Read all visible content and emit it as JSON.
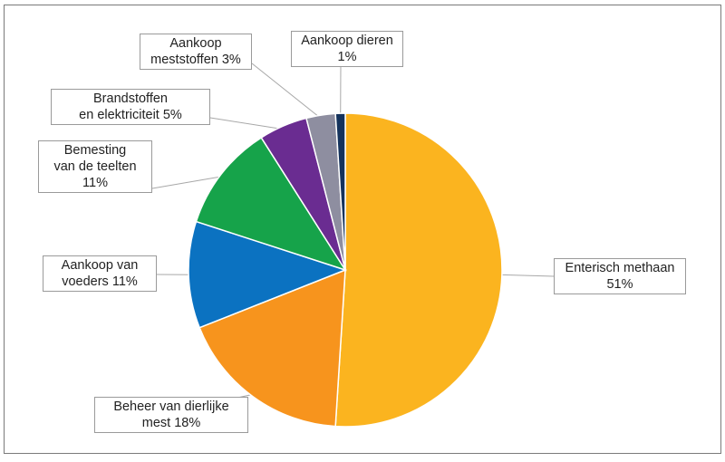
{
  "chart_data": {
    "type": "pie",
    "title": "",
    "slices": [
      {
        "name": "Enterisch methaan",
        "value": 51,
        "color": "#fbb41f",
        "label_lines": [
          "Enterisch methaan",
          "51%"
        ]
      },
      {
        "name": "Beheer van dierlijke mest",
        "value": 18,
        "color": "#f7941d",
        "label_lines": [
          "Beheer van dierlijke",
          "mest 18%"
        ]
      },
      {
        "name": "Aankoop van voeders",
        "value": 11,
        "color": "#0b72c1",
        "label_lines": [
          "Aankoop van",
          "voeders  11%"
        ]
      },
      {
        "name": "Bemesting van de teelten",
        "value": 11,
        "color": "#16a34a",
        "label_lines": [
          "Bemesting",
          "van de teelten",
          "11%"
        ]
      },
      {
        "name": "Brandstoffen en elektriciteit",
        "value": 5,
        "color": "#6a2c91",
        "label_lines": [
          "Brandstoffen",
          "en elektriciteit 5%"
        ]
      },
      {
        "name": "Aankoop meststoffen",
        "value": 3,
        "color": "#8e8ea0",
        "label_lines": [
          "Aankoop",
          "meststoffen 3%"
        ]
      },
      {
        "name": "Aankoop dieren",
        "value": 1,
        "color": "#14325c",
        "label_lines": [
          "Aankoop dieren",
          "1%"
        ]
      }
    ]
  }
}
